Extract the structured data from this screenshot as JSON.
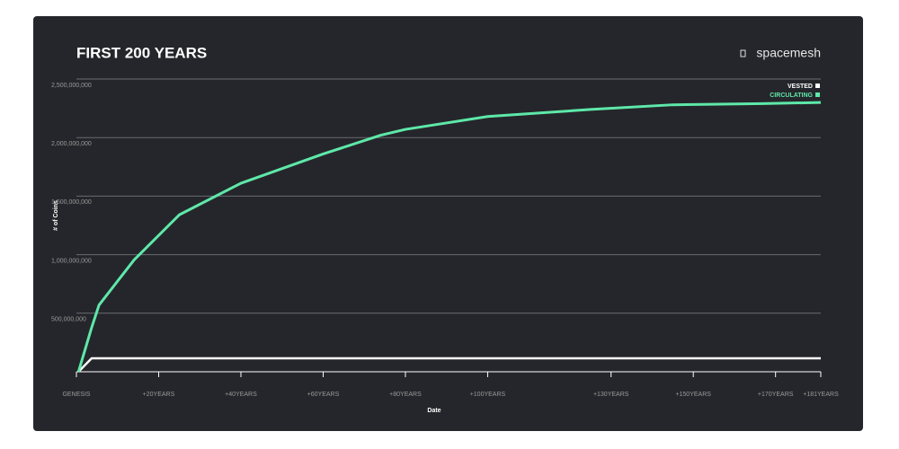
{
  "chart_data": {
    "type": "line",
    "title": "FIRST 200 YEARS",
    "brand": "spacemesh",
    "x_label": "Date",
    "y_label": "# of Coins",
    "x": [
      0.5,
      3.7,
      5.5,
      14,
      25,
      40,
      60,
      74,
      80,
      100,
      125,
      145,
      167,
      181
    ],
    "series": [
      {
        "name": "VESTED",
        "color": "#ffffff",
        "values": [
          0,
          115000000,
          115000000,
          115000000,
          115000000,
          115000000,
          115000000,
          115000000,
          115000000,
          115000000,
          115000000,
          115000000,
          115000000,
          115000000
        ]
      },
      {
        "name": "CIRCULATING",
        "color": "#5ee8a9",
        "values": [
          0,
          377000000,
          570000000,
          954000000,
          1340000000,
          1610000000,
          1860000000,
          2020000000,
          2070000000,
          2180000000,
          2240000000,
          2280000000,
          2290000000,
          2300000000
        ]
      }
    ],
    "xlim": [
      0,
      181
    ],
    "xticks": [
      {
        "value": 0,
        "label": "GENESIS"
      },
      {
        "value": 20,
        "label": "+20YEARS"
      },
      {
        "value": 40,
        "label": "+40YEARS"
      },
      {
        "value": 60,
        "label": "+60YEARS"
      },
      {
        "value": 80,
        "label": "+80YEARS"
      },
      {
        "value": 100,
        "label": "+100YEARS"
      },
      {
        "value": 130,
        "label": "+130YEARS"
      },
      {
        "value": 150,
        "label": "+150YEARS"
      },
      {
        "value": 170,
        "label": "+170YEARS"
      },
      {
        "value": 181,
        "label": "+181YEARS"
      }
    ],
    "ylim": [
      0,
      2500000000
    ],
    "yticks": [
      {
        "value": 500000000,
        "label": "500,000,000"
      },
      {
        "value": 1000000000,
        "label": "1,000,000,000"
      },
      {
        "value": 1500000000,
        "label": "1,500,000,000"
      },
      {
        "value": 2000000000,
        "label": "2,000,000,000"
      },
      {
        "value": 2500000000,
        "label": "2,500,000,000"
      }
    ],
    "grid": true,
    "legend": "top-right"
  }
}
